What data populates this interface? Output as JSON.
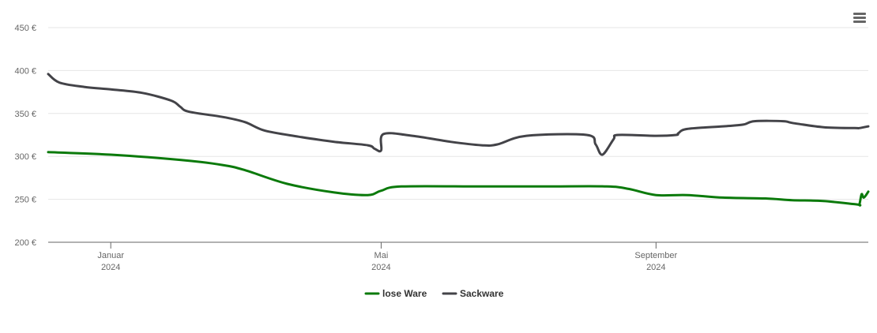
{
  "chart_data": {
    "type": "line",
    "y_unit_suffix": " €",
    "ylim": [
      200,
      450
    ],
    "y_ticks": [
      200,
      250,
      300,
      350,
      400,
      450
    ],
    "y_tick_labels": [
      "200 €",
      "250 €",
      "300 €",
      "350 €",
      "400 €",
      "450 €"
    ],
    "xlim": [
      "2023-12-04",
      "2024-12-05"
    ],
    "x_ticks": [
      {
        "date": "2024-01-01",
        "month": "Januar",
        "year": "2024"
      },
      {
        "date": "2024-05-01",
        "month": "Mai",
        "year": "2024"
      },
      {
        "date": "2024-09-01",
        "month": "September",
        "year": "2024"
      }
    ],
    "grid": true,
    "legend_position": "bottom-center",
    "series": [
      {
        "name": "lose Ware",
        "color": "#0b7a0b",
        "points": [
          [
            "2023-12-04",
            305
          ],
          [
            "2024-01-01",
            302
          ],
          [
            "2024-02-01",
            296
          ],
          [
            "2024-02-20",
            290
          ],
          [
            "2024-03-01",
            284
          ],
          [
            "2024-03-20",
            268
          ],
          [
            "2024-04-10",
            258
          ],
          [
            "2024-04-25",
            255
          ],
          [
            "2024-05-01",
            260
          ],
          [
            "2024-05-10",
            265
          ],
          [
            "2024-06-15",
            265
          ],
          [
            "2024-07-15",
            265
          ],
          [
            "2024-08-10",
            265
          ],
          [
            "2024-08-20",
            262
          ],
          [
            "2024-09-01",
            255
          ],
          [
            "2024-09-15",
            255
          ],
          [
            "2024-10-01",
            252
          ],
          [
            "2024-10-20",
            251
          ],
          [
            "2024-11-01",
            249
          ],
          [
            "2024-11-15",
            248
          ],
          [
            "2024-11-30",
            244
          ],
          [
            "2024-12-01",
            244
          ],
          [
            "2024-12-02",
            256
          ],
          [
            "2024-12-03",
            252
          ],
          [
            "2024-12-05",
            259
          ]
        ]
      },
      {
        "name": "Sackware",
        "color": "#434348",
        "points": [
          [
            "2023-12-04",
            396
          ],
          [
            "2023-12-09",
            386
          ],
          [
            "2023-12-20",
            381
          ],
          [
            "2024-01-01",
            378
          ],
          [
            "2024-01-15",
            374
          ],
          [
            "2024-01-28",
            365
          ],
          [
            "2024-02-01",
            358
          ],
          [
            "2024-02-05",
            352
          ],
          [
            "2024-02-20",
            346
          ],
          [
            "2024-03-01",
            340
          ],
          [
            "2024-03-10",
            330
          ],
          [
            "2024-03-25",
            323
          ],
          [
            "2024-04-10",
            317
          ],
          [
            "2024-04-25",
            313
          ],
          [
            "2024-04-28",
            309
          ],
          [
            "2024-05-01",
            307
          ],
          [
            "2024-05-02",
            326
          ],
          [
            "2024-05-15",
            324
          ],
          [
            "2024-06-01",
            317
          ],
          [
            "2024-06-15",
            313
          ],
          [
            "2024-06-22",
            314
          ],
          [
            "2024-07-05",
            324
          ],
          [
            "2024-08-01",
            325
          ],
          [
            "2024-08-05",
            314
          ],
          [
            "2024-08-08",
            302
          ],
          [
            "2024-08-13",
            320
          ],
          [
            "2024-08-15",
            325
          ],
          [
            "2024-09-01",
            324
          ],
          [
            "2024-09-10",
            325
          ],
          [
            "2024-09-11",
            327
          ],
          [
            "2024-09-15",
            332
          ],
          [
            "2024-10-01",
            335
          ],
          [
            "2024-10-10",
            337
          ],
          [
            "2024-10-15",
            341
          ],
          [
            "2024-10-28",
            341
          ],
          [
            "2024-11-01",
            339
          ],
          [
            "2024-11-15",
            334
          ],
          [
            "2024-11-29",
            333
          ],
          [
            "2024-12-01",
            333
          ],
          [
            "2024-12-05",
            335
          ]
        ]
      }
    ]
  },
  "menu": {
    "icon": "hamburger-menu-icon"
  }
}
